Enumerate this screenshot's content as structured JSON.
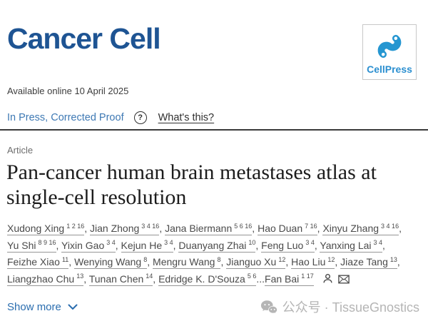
{
  "journal": {
    "name": "Cancer Cell",
    "publisher": "CellPress"
  },
  "meta": {
    "available_online": "Available online 10 April 2025",
    "status": "In Press, Corrected Proof",
    "help_glyph": "?",
    "whats_this": "What's this?"
  },
  "article": {
    "type_label": "Article",
    "title": "Pan-cancer human brain metastases atlas at single-cell resolution",
    "title_lines": [
      "Pan-cancer human brain metastases atlas at",
      "single-cell resolution"
    ]
  },
  "authors": {
    "list": [
      {
        "name": "Xudong Xing",
        "sup": "1 2 16",
        "sep": ", "
      },
      {
        "name": "Jian Zhong",
        "sup": "3 4 16",
        "sep": ", "
      },
      {
        "name": "Jana Biermann",
        "sup": "5 6 16",
        "sep": ", "
      },
      {
        "name": "Hao Duan",
        "sup": "7 16",
        "sep": ", "
      },
      {
        "name": "Xinyu Zhang",
        "sup": "3 4 16",
        "sep": ", "
      },
      {
        "name": "Yu Shi",
        "sup": "8 9 16",
        "sep": ", "
      },
      {
        "name": "Yixin Gao",
        "sup": "3 4",
        "sep": ", "
      },
      {
        "name": "Kejun He",
        "sup": "3 4",
        "sep": ", "
      },
      {
        "name": "Duanyang Zhai",
        "sup": "10",
        "sep": ", "
      },
      {
        "name": "Feng Luo",
        "sup": "3 4",
        "sep": ", "
      },
      {
        "name": "Yanxing Lai",
        "sup": "3 4",
        "sep": ", "
      },
      {
        "name": "Feizhe Xiao",
        "sup": "11",
        "sep": ", "
      },
      {
        "name": "Wenying Wang",
        "sup": "8",
        "sep": ", "
      },
      {
        "name": "Mengru Wang",
        "sup": "8",
        "sep": ", "
      },
      {
        "name": "Jianguo Xu",
        "sup": "12",
        "sep": ", "
      },
      {
        "name": "Hao Liu",
        "sup": "12",
        "sep": ", "
      },
      {
        "name": "Jiaze Tang",
        "sup": "13",
        "sep": ", "
      },
      {
        "name": "Liangzhao Chu",
        "sup": "13",
        "sep": ", "
      },
      {
        "name": "Tunan Chen",
        "sup": "14",
        "sep": ", "
      },
      {
        "name": "Edridge K. D'Souza",
        "sup": "5 6",
        "sep": "..."
      },
      {
        "name": "Fan Bai",
        "sup": "1 17",
        "sep": ""
      }
    ],
    "end_icons": [
      "person-icon",
      "email-icon"
    ],
    "show_more_label": "Show more"
  },
  "watermark": {
    "text": "公众号 · TissueGnostics"
  },
  "colors": {
    "journal_navy": "#1e5493",
    "cellpress_blue": "#2596d1",
    "cellpress_text_blue": "#2b8fd0",
    "status_blue": "#3e79b4",
    "link_blue": "#2a6daf",
    "title_dark": "#1c1c1c",
    "author_gray": "#4a4a4a",
    "watermark_gray": "#b5b5b5"
  }
}
